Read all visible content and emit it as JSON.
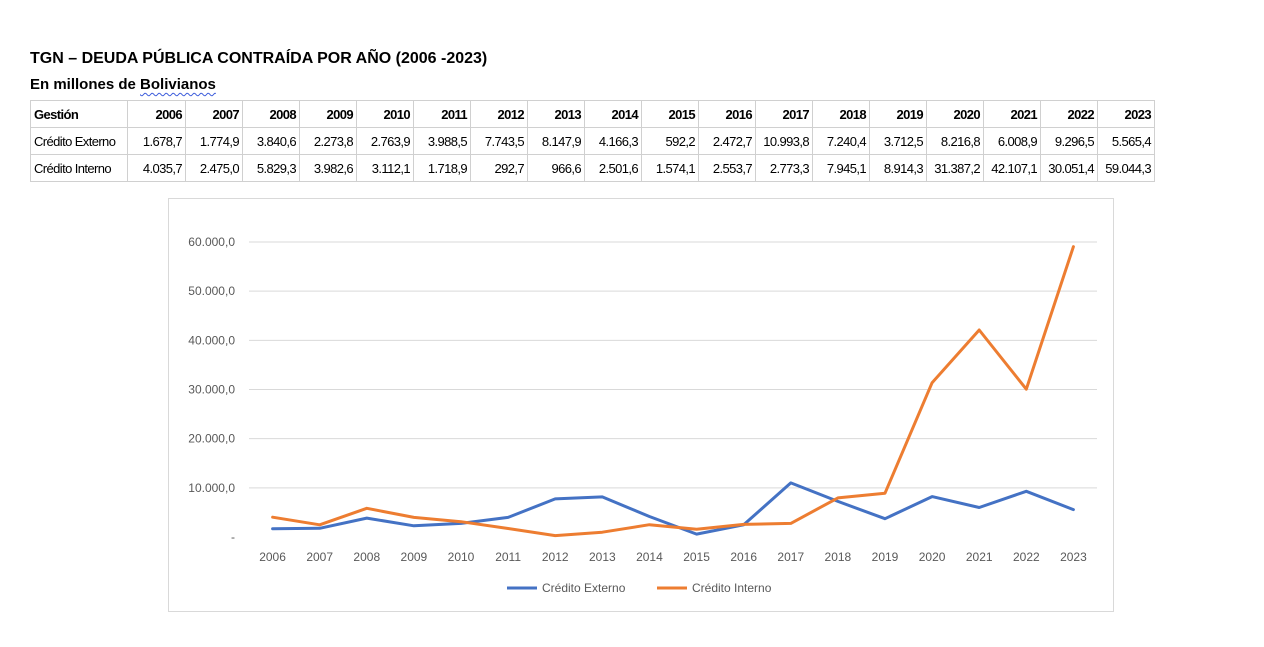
{
  "header": {
    "title": "TGN – DEUDA PÚBLICA CONTRAÍDA POR AÑO (2006 -2023)",
    "subtitle_pre": "En millones de ",
    "subtitle_word": "Bolivianos"
  },
  "table": {
    "header_label": "Gestión",
    "years": [
      "2006",
      "2007",
      "2008",
      "2009",
      "2010",
      "2011",
      "2012",
      "2013",
      "2014",
      "2015",
      "2016",
      "2017",
      "2018",
      "2019",
      "2020",
      "2021",
      "2022",
      "2023"
    ],
    "rows": [
      {
        "label": "Crédito Externo",
        "values": [
          "1.678,7",
          "1.774,9",
          "3.840,6",
          "2.273,8",
          "2.763,9",
          "3.988,5",
          "7.743,5",
          "8.147,9",
          "4.166,3",
          "592,2",
          "2.472,7",
          "10.993,8",
          "7.240,4",
          "3.712,5",
          "8.216,8",
          "6.008,9",
          "9.296,5",
          "5.565,4"
        ]
      },
      {
        "label": "Crédito Interno",
        "values": [
          "4.035,7",
          "2.475,0",
          "5.829,3",
          "3.982,6",
          "3.112,1",
          "1.718,9",
          "292,7",
          "966,6",
          "2.501,6",
          "1.574,1",
          "2.553,7",
          "2.773,3",
          "7.945,1",
          "8.914,3",
          "31.387,2",
          "42.107,1",
          "30.051,4",
          "59.044,3"
        ]
      }
    ]
  },
  "chart_data": {
    "type": "line",
    "x": [
      "2006",
      "2007",
      "2008",
      "2009",
      "2010",
      "2011",
      "2012",
      "2013",
      "2014",
      "2015",
      "2016",
      "2017",
      "2018",
      "2019",
      "2020",
      "2021",
      "2022",
      "2023"
    ],
    "series": [
      {
        "name": "Crédito Externo",
        "color": "#4472c4",
        "values": [
          1678.7,
          1774.9,
          3840.6,
          2273.8,
          2763.9,
          3988.5,
          7743.5,
          8147.9,
          4166.3,
          592.2,
          2472.7,
          10993.8,
          7240.4,
          3712.5,
          8216.8,
          6008.9,
          9296.5,
          5565.4
        ]
      },
      {
        "name": "Crédito Interno",
        "color": "#ed7d31",
        "values": [
          4035.7,
          2475.0,
          5829.3,
          3982.6,
          3112.1,
          1718.9,
          292.7,
          966.6,
          2501.6,
          1574.1,
          2553.7,
          2773.3,
          7945.1,
          8914.3,
          31387.2,
          42107.1,
          30051.4,
          59044.3
        ]
      }
    ],
    "ylim": [
      0,
      60000
    ],
    "yticks": [
      0,
      10000,
      20000,
      30000,
      40000,
      50000,
      60000
    ],
    "ytick_labels": [
      "-",
      "10.000,0",
      "20.000,0",
      "30.000,0",
      "40.000,0",
      "50.000,0",
      "60.000,0"
    ],
    "grid": true,
    "legend": "bottom"
  }
}
